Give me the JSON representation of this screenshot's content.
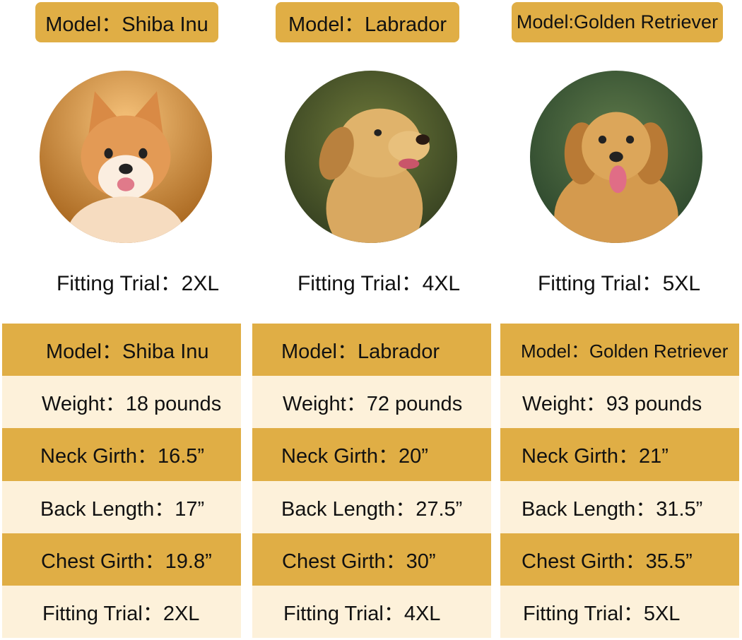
{
  "colors": {
    "gold": "#e0ae45",
    "cream": "#fdf1da"
  },
  "models": [
    {
      "badge": "Model：Shiba Inu",
      "photo_icon": "shiba-inu-dog-photo",
      "fitting_trial": "Fitting Trial：2XL",
      "table": {
        "model": "Model：Shiba Inu",
        "weight": "Weight：18 pounds",
        "neck": "Neck Girth：16.5”",
        "back": "Back Length：17”",
        "chest": "Chest Girth：19.8”",
        "trial": "Fitting Trial：2XL"
      }
    },
    {
      "badge": "Model：Labrador",
      "photo_icon": "labrador-dog-photo",
      "fitting_trial": "Fitting Trial：4XL",
      "table": {
        "model": "Model：Labrador",
        "weight": "Weight：72 pounds",
        "neck": "Neck Girth：20”",
        "back": "Back Length：27.5”",
        "chest": "Chest Girth：30”",
        "trial": "Fitting Trial：4XL"
      }
    },
    {
      "badge": "Model:Golden Retriever",
      "photo_icon": "golden-retriever-dog-photo",
      "fitting_trial": "Fitting Trial：5XL",
      "table": {
        "model": "Model：Golden Retriever",
        "weight": "Weight：93 pounds",
        "neck": "Neck Girth：21”",
        "back": "Back Length：31.5”",
        "chest": "Chest Girth：35.5”",
        "trial": "Fitting Trial：5XL"
      }
    }
  ]
}
